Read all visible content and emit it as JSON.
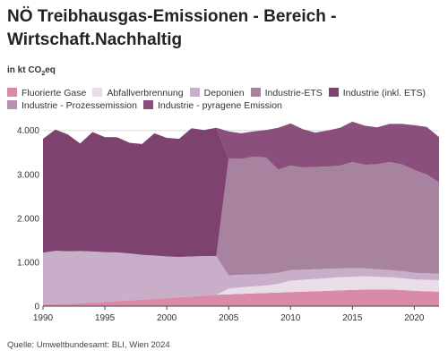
{
  "title": "NÖ Treibhausgas-Emissionen - Bereich - Wirtschaft.Nachhaltig",
  "unit_prefix": "in kt CO",
  "unit_sub": "2",
  "unit_suffix": "eq",
  "source": "Quelle: Umweltbundesamt: BLI, Wien 2024",
  "chart_data": {
    "type": "area",
    "stacked": true,
    "title": "NÖ Treibhausgas-Emissionen - Bereich - Wirtschaft.Nachhaltig",
    "ylabel": "in kt CO2eq",
    "ylim": [
      0,
      4300
    ],
    "yticks": [
      0,
      1000,
      2000,
      3000,
      4000
    ],
    "ytick_labels": [
      "0",
      "1.000",
      "2.000",
      "3.000",
      "4.000"
    ],
    "xticks": [
      1990,
      1995,
      2000,
      2005,
      2010,
      2015,
      2020
    ],
    "grid": true,
    "legend_position": "top",
    "x": [
      1990,
      1991,
      1992,
      1993,
      1994,
      1995,
      1996,
      1997,
      1998,
      1999,
      2000,
      2001,
      2002,
      2003,
      2004,
      2005,
      2006,
      2007,
      2008,
      2009,
      2010,
      2011,
      2012,
      2013,
      2014,
      2015,
      2016,
      2017,
      2018,
      2019,
      2020,
      2021,
      2022
    ],
    "series": [
      {
        "name": "Fluorierte Gase",
        "color": "#d98aa8",
        "values": [
          40,
          45,
          55,
          70,
          85,
          100,
          115,
          130,
          150,
          165,
          180,
          200,
          220,
          240,
          260,
          270,
          280,
          290,
          300,
          310,
          320,
          330,
          340,
          350,
          360,
          370,
          380,
          380,
          380,
          370,
          350,
          340,
          330
        ]
      },
      {
        "name": "Abfallverbrennung",
        "color": "#e8dde8",
        "values": [
          0,
          0,
          0,
          0,
          0,
          0,
          0,
          0,
          0,
          0,
          0,
          0,
          0,
          0,
          0,
          130,
          150,
          160,
          170,
          200,
          260,
          270,
          280,
          290,
          300,
          300,
          300,
          290,
          280,
          270,
          260,
          260,
          260
        ]
      },
      {
        "name": "Deponien",
        "color": "#c8aec8",
        "values": [
          1180,
          1215,
          1195,
          1185,
          1160,
          1130,
          1110,
          1070,
          1020,
          990,
          950,
          920,
          910,
          900,
          880,
          300,
          285,
          270,
          260,
          250,
          240,
          230,
          220,
          210,
          200,
          190,
          180,
          170,
          160,
          160,
          150,
          150,
          150
        ]
      },
      {
        "name": "Industrie-ETS",
        "color": "#a7839f",
        "values": [
          0,
          0,
          0,
          0,
          0,
          0,
          0,
          0,
          0,
          0,
          0,
          0,
          0,
          0,
          0,
          2660,
          2640,
          2680,
          2660,
          2350,
          2380,
          2330,
          2330,
          2330,
          2340,
          2420,
          2360,
          2390,
          2460,
          2430,
          2340,
          2250,
          2080
        ]
      },
      {
        "name": "Industrie (inkl. ETS)",
        "color": "#7e426f",
        "values": [
          2590,
          2760,
          2660,
          2450,
          2720,
          2620,
          2620,
          2520,
          2520,
          2780,
          2700,
          2690,
          2920,
          2870,
          2920,
          0,
          0,
          0,
          0,
          0,
          0,
          0,
          0,
          0,
          0,
          0,
          0,
          0,
          0,
          0,
          0,
          0,
          0
        ]
      },
      {
        "name": "Industrie - Prozessemission",
        "color": "#b990b2",
        "values": [
          0,
          0,
          0,
          0,
          0,
          0,
          0,
          0,
          0,
          0,
          0,
          0,
          0,
          0,
          0,
          0,
          0,
          0,
          0,
          0,
          0,
          0,
          0,
          0,
          0,
          0,
          0,
          0,
          0,
          0,
          0,
          0,
          0
        ]
      },
      {
        "name": "Industrie - pyragene Emission",
        "color": "#8b4f7c",
        "values": [
          0,
          0,
          0,
          0,
          0,
          0,
          0,
          0,
          0,
          0,
          0,
          0,
          0,
          0,
          0,
          620,
          580,
          580,
          620,
          950,
          960,
          870,
          780,
          820,
          860,
          920,
          890,
          840,
          870,
          920,
          1020,
          1080,
          1030
        ]
      }
    ]
  }
}
